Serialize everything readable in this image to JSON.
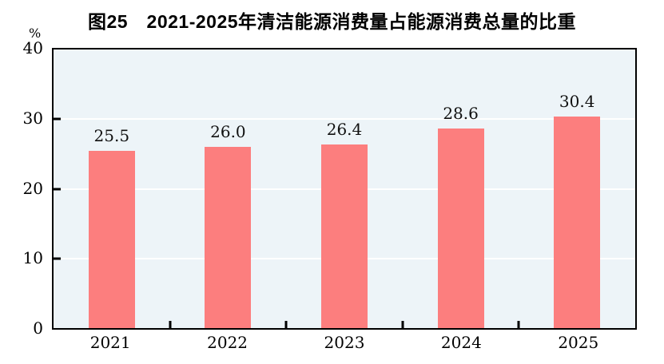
{
  "chart_data": {
    "type": "bar",
    "title": "图25　2021-2025年清洁能源消费量占能源消费总量的比重",
    "unit_label": "%",
    "categories": [
      "2021",
      "2022",
      "2023",
      "2024",
      "2025"
    ],
    "values": [
      25.5,
      26.0,
      26.4,
      28.6,
      30.4
    ],
    "labels": [
      "25.5",
      "26.0",
      "26.4",
      "28.6",
      "30.4"
    ],
    "xlabel": "",
    "ylabel": "%",
    "ylim": [
      0,
      40
    ],
    "yticks": [
      0,
      10,
      20,
      30,
      40
    ],
    "legend": "none",
    "grid": "horizontal",
    "bar_color": "#fc7e7e",
    "plot_bg_color": "#edf4f8",
    "gridline_color": "#ffffff",
    "axis_color": "#000000"
  }
}
